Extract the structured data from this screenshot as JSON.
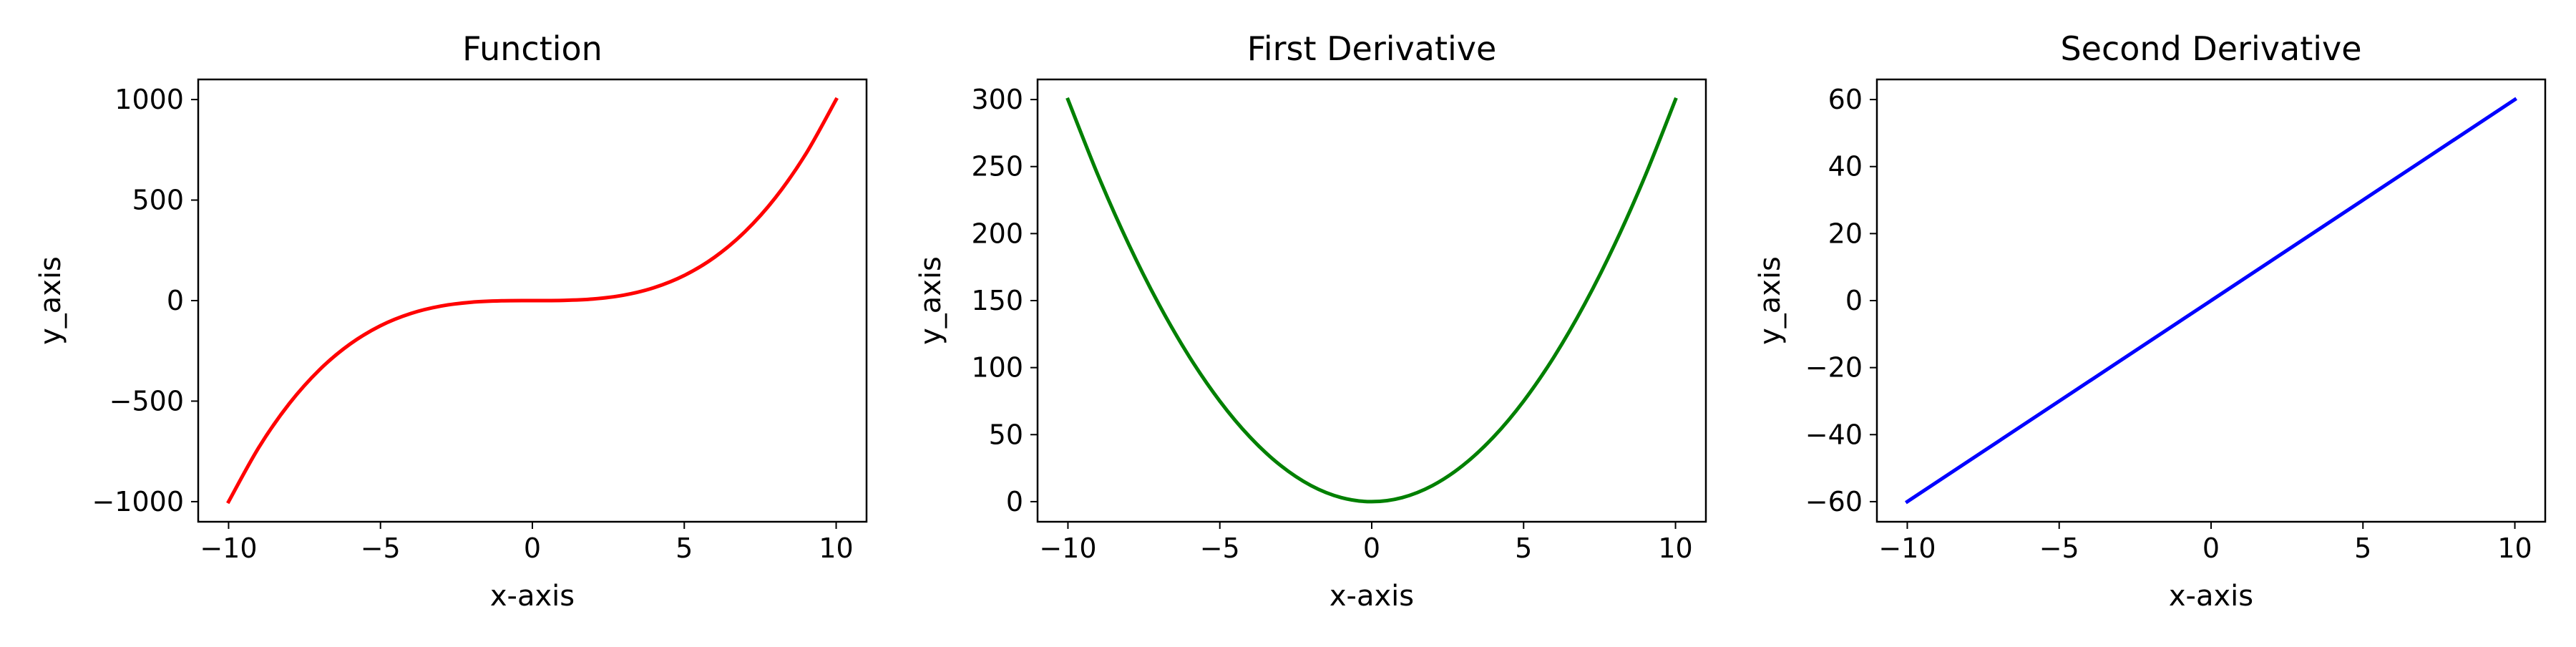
{
  "chart_data": [
    {
      "type": "line",
      "title": "Function",
      "xlabel": "x-axis",
      "ylabel": "y_axis",
      "xlim": [
        -11,
        11
      ],
      "ylim": [
        -1100,
        1100
      ],
      "xticks": [
        -10,
        -5,
        0,
        5,
        10
      ],
      "xtick_labels": [
        "−10",
        "−5",
        "0",
        "5",
        "10"
      ],
      "yticks": [
        -1000,
        -500,
        0,
        500,
        1000
      ],
      "ytick_labels": [
        "−1000",
        "−500",
        "0",
        "500",
        "1000"
      ],
      "grid": false,
      "series": [
        {
          "color": "#ff0000",
          "x": [
            -10,
            -9,
            -8,
            -7,
            -6,
            -5,
            -4,
            -3,
            -2,
            -1,
            0,
            1,
            2,
            3,
            4,
            5,
            6,
            7,
            8,
            9,
            10
          ],
          "y": [
            -1000,
            -729,
            -512,
            -343,
            -216,
            -125,
            -64,
            -27,
            -8,
            -1,
            0,
            1,
            8,
            27,
            64,
            125,
            216,
            343,
            512,
            729,
            1000
          ]
        }
      ]
    },
    {
      "type": "line",
      "title": "First Derivative",
      "xlabel": "x-axis",
      "ylabel": "y_axis",
      "xlim": [
        -11,
        11
      ],
      "ylim": [
        -15,
        315
      ],
      "xticks": [
        -10,
        -5,
        0,
        5,
        10
      ],
      "xtick_labels": [
        "−10",
        "−5",
        "0",
        "5",
        "10"
      ],
      "yticks": [
        0,
        50,
        100,
        150,
        200,
        250,
        300
      ],
      "ytick_labels": [
        "0",
        "50",
        "100",
        "150",
        "200",
        "250",
        "300"
      ],
      "grid": false,
      "series": [
        {
          "color": "#008000",
          "x": [
            -10,
            -9,
            -8,
            -7,
            -6,
            -5,
            -4,
            -3,
            -2,
            -1,
            0,
            1,
            2,
            3,
            4,
            5,
            6,
            7,
            8,
            9,
            10
          ],
          "y": [
            300,
            243,
            192,
            147,
            108,
            75,
            48,
            27,
            12,
            3,
            0,
            3,
            12,
            27,
            48,
            75,
            108,
            147,
            192,
            243,
            300
          ]
        }
      ]
    },
    {
      "type": "line",
      "title": "Second Derivative",
      "xlabel": "x-axis",
      "ylabel": "y_axis",
      "xlim": [
        -11,
        11
      ],
      "ylim": [
        -66,
        66
      ],
      "xticks": [
        -10,
        -5,
        0,
        5,
        10
      ],
      "xtick_labels": [
        "−10",
        "−5",
        "0",
        "5",
        "10"
      ],
      "yticks": [
        -60,
        -40,
        -20,
        0,
        20,
        40,
        60
      ],
      "ytick_labels": [
        "−60",
        "−40",
        "−20",
        "0",
        "20",
        "40",
        "60"
      ],
      "grid": false,
      "series": [
        {
          "color": "#0000ff",
          "x": [
            -10,
            -5,
            0,
            5,
            10
          ],
          "y": [
            -60,
            -30,
            0,
            30,
            60
          ]
        }
      ]
    }
  ]
}
